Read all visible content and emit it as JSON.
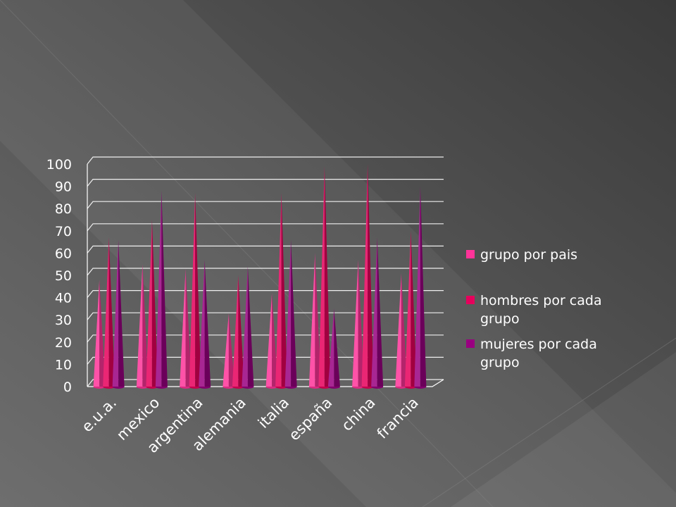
{
  "chart_data": {
    "type": "bar",
    "style": "3d-cone",
    "title": "",
    "xlabel": "",
    "ylabel": "",
    "ylim": [
      0,
      100
    ],
    "yticks": [
      0,
      10,
      20,
      30,
      40,
      50,
      60,
      70,
      80,
      90,
      100
    ],
    "grid": true,
    "legend_position": "right",
    "categories": [
      "e.u.a.",
      "mexico",
      "argentina",
      "alemania",
      "italia",
      "españa",
      "china",
      "francia"
    ],
    "series": [
      {
        "name": "grupo por pais",
        "color": "#ff3399",
        "values": [
          48,
          55,
          53,
          33,
          42,
          60,
          57,
          51
        ]
      },
      {
        "name": "hombres por cada grupo",
        "color": "#e6005c",
        "values": [
          67,
          75,
          87,
          50,
          87,
          99,
          100,
          70
        ]
      },
      {
        "name": "mujeres por cada grupo",
        "color": "#990080",
        "values": [
          66,
          88,
          57,
          54,
          66,
          35,
          67,
          90
        ]
      }
    ]
  }
}
